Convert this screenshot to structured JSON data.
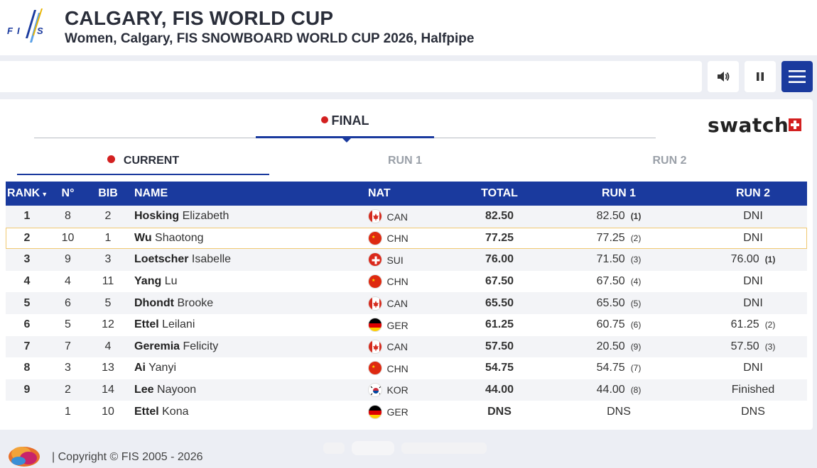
{
  "header": {
    "logo_text": "FIS",
    "title": "CALGARY, FIS WORLD CUP",
    "subtitle": "Women, Calgary, FIS SNOWBOARD WORLD CUP 2026, Halfpipe"
  },
  "controls": [
    "sound-icon",
    "pause-icon",
    "menu-icon"
  ],
  "phase_tab": "FINAL",
  "sponsor": "swatch",
  "tabs": {
    "current": "CURRENT",
    "run1": "RUN 1",
    "run2": "RUN 2"
  },
  "table": {
    "headers": {
      "rank": "RANK",
      "no": "N°",
      "bib": "BIB",
      "name": "NAME",
      "nat": "NAT",
      "total": "TOTAL",
      "run1": "RUN 1",
      "run2": "RUN 2"
    },
    "rows": [
      {
        "rank": "1",
        "no": "8",
        "bib": "2",
        "last": "Hosking",
        "first": "Elizabeth",
        "nat": "CAN",
        "total": "82.50",
        "run1": "82.50",
        "run1_pos": "(1)",
        "run1_best": true,
        "run2": "DNI",
        "run2_pos": "",
        "run2_best": false
      },
      {
        "rank": "2",
        "no": "10",
        "bib": "1",
        "last": "Wu",
        "first": "Shaotong",
        "nat": "CHN",
        "total": "77.25",
        "run1": "77.25",
        "run1_pos": "(2)",
        "run1_best": false,
        "run2": "DNI",
        "run2_pos": "",
        "run2_best": false
      },
      {
        "rank": "3",
        "no": "9",
        "bib": "3",
        "last": "Loetscher",
        "first": "Isabelle",
        "nat": "SUI",
        "total": "76.00",
        "run1": "71.50",
        "run1_pos": "(3)",
        "run1_best": false,
        "run2": "76.00",
        "run2_pos": "(1)",
        "run2_best": true
      },
      {
        "rank": "4",
        "no": "4",
        "bib": "11",
        "last": "Yang",
        "first": "Lu",
        "nat": "CHN",
        "total": "67.50",
        "run1": "67.50",
        "run1_pos": "(4)",
        "run1_best": false,
        "run2": "DNI",
        "run2_pos": "",
        "run2_best": false
      },
      {
        "rank": "5",
        "no": "6",
        "bib": "5",
        "last": "Dhondt",
        "first": "Brooke",
        "nat": "CAN",
        "total": "65.50",
        "run1": "65.50",
        "run1_pos": "(5)",
        "run1_best": false,
        "run2": "DNI",
        "run2_pos": "",
        "run2_best": false
      },
      {
        "rank": "6",
        "no": "5",
        "bib": "12",
        "last": "Ettel",
        "first": "Leilani",
        "nat": "GER",
        "total": "61.25",
        "run1": "60.75",
        "run1_pos": "(6)",
        "run1_best": false,
        "run2": "61.25",
        "run2_pos": "(2)",
        "run2_best": false
      },
      {
        "rank": "7",
        "no": "7",
        "bib": "4",
        "last": "Geremia",
        "first": "Felicity",
        "nat": "CAN",
        "total": "57.50",
        "run1": "20.50",
        "run1_pos": "(9)",
        "run1_best": false,
        "run2": "57.50",
        "run2_pos": "(3)",
        "run2_best": false
      },
      {
        "rank": "8",
        "no": "3",
        "bib": "13",
        "last": "Ai",
        "first": "Yanyi",
        "nat": "CHN",
        "total": "54.75",
        "run1": "54.75",
        "run1_pos": "(7)",
        "run1_best": false,
        "run2": "DNI",
        "run2_pos": "",
        "run2_best": false
      },
      {
        "rank": "9",
        "no": "2",
        "bib": "14",
        "last": "Lee",
        "first": "Nayoon",
        "nat": "KOR",
        "total": "44.00",
        "run1": "44.00",
        "run1_pos": "(8)",
        "run1_best": false,
        "run2": "Finished",
        "run2_pos": "",
        "run2_best": false
      },
      {
        "rank": "",
        "no": "1",
        "bib": "10",
        "last": "Ettel",
        "first": "Kona",
        "nat": "GER",
        "total": "DNS",
        "run1": "DNS",
        "run1_pos": "",
        "run1_best": false,
        "run2": "DNS",
        "run2_pos": "",
        "run2_best": false
      }
    ]
  },
  "footer": {
    "copyright": "| Copyright © FIS 2005 - 2026"
  },
  "colors": {
    "brand_blue": "#1a3a9e",
    "live_red": "#d32020",
    "highlight_border": "#f0c870"
  }
}
